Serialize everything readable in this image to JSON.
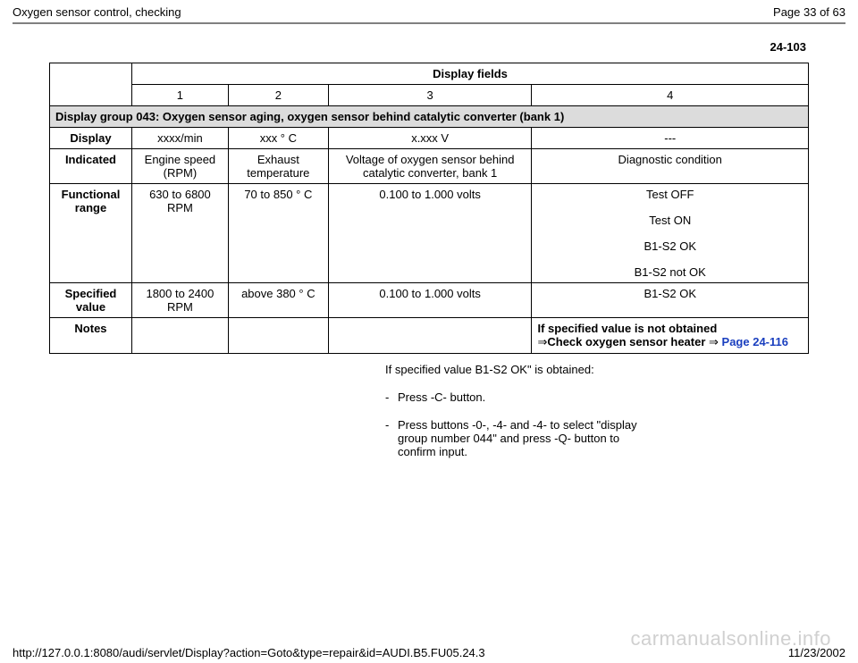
{
  "header": {
    "title": "Oxygen sensor control, checking",
    "page_info": "Page 33 of 63"
  },
  "doc_number": "24-103",
  "table": {
    "display_fields_header": "Display fields",
    "col_nums": [
      "1",
      "2",
      "3",
      "4"
    ],
    "group_header": "Display group 043: Oxygen sensor aging, oxygen sensor behind catalytic converter (bank 1)",
    "rows": {
      "display": {
        "label": "Display",
        "c1": "xxxx/min",
        "c2": "xxx  ° C",
        "c3": "x.xxx V",
        "c4": "---"
      },
      "indicated": {
        "label": "Indicated",
        "c1": "Engine speed (RPM)",
        "c2": "Exhaust temperature",
        "c3": "Voltage of oxygen sensor behind catalytic converter, bank 1",
        "c4": "Diagnostic condition"
      },
      "functional_range": {
        "label": "Functional range",
        "c1": "630 to 6800 RPM",
        "c2": "70 to 850  ° C",
        "c3": "0.100 to 1.000 volts",
        "c4_items": [
          "Test OFF",
          "Test ON",
          "B1-S2 OK",
          "B1-S2 not OK"
        ]
      },
      "specified_value": {
        "label": "Specified value",
        "c1": "1800 to 2400 RPM",
        "c2": "above 380  ° C",
        "c3": "0.100 to 1.000 volts",
        "c4": "B1-S2 OK"
      },
      "notes": {
        "label": "Notes",
        "c4_bold1": "If specified value is not obtained",
        "c4_arrow": "⇒",
        "c4_bold2": "Check oxygen sensor heater ",
        "c4_arrow2": "⇒ ",
        "c4_link": "Page 24-116"
      }
    }
  },
  "below": {
    "para": "If specified value B1-S2 OK\" is obtained:",
    "bullets": [
      "Press -C- button.",
      "Press buttons -0-, -4- and -4- to select \"display group number 044\" and press -Q- button to confirm input."
    ]
  },
  "footer": {
    "url": "http://127.0.0.1:8080/audi/servlet/Display?action=Goto&type=repair&id=AUDI.B5.FU05.24.3",
    "date": "11/23/2002"
  },
  "watermark": "carmanualsonline.info",
  "colors": {
    "link_color": "#1a3fbf",
    "group_bg": "#dcdcdc",
    "hr_color": "#808080",
    "watermark_color": "#d0d0d0"
  }
}
